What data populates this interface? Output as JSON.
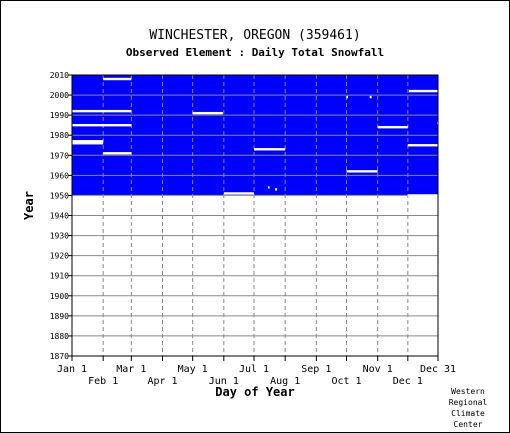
{
  "chart_data": {
    "type": "heatmap",
    "title": "WINCHESTER, OREGON   (359461)",
    "subtitle": "Observed Element : Daily Total Snowfall",
    "xlabel": "Day of Year",
    "ylabel": "Year",
    "xlim": [
      1,
      365
    ],
    "ylim": [
      1870,
      2010
    ],
    "grid": true,
    "data_color": "#0000ff",
    "missing_color": "#ffffff",
    "x_ticks_upper": [
      {
        "label": "Jan 1",
        "day": 1
      },
      {
        "label": "Mar 1",
        "day": 60
      },
      {
        "label": "May 1",
        "day": 121
      },
      {
        "label": "Jul 1",
        "day": 182
      },
      {
        "label": "Sep 1",
        "day": 244
      },
      {
        "label": "Nov 1",
        "day": 305
      },
      {
        "label": "Dec 31",
        "day": 365
      }
    ],
    "x_ticks_lower": [
      {
        "label": "Feb 1",
        "day": 32
      },
      {
        "label": "Apr 1",
        "day": 91
      },
      {
        "label": "Jun 1",
        "day": 152
      },
      {
        "label": "Aug 1",
        "day": 213
      },
      {
        "label": "Oct 1",
        "day": 274
      },
      {
        "label": "Dec 1",
        "day": 335
      }
    ],
    "y_ticks": [
      1870,
      1880,
      1890,
      1900,
      1910,
      1920,
      1930,
      1940,
      1950,
      1960,
      1970,
      1980,
      1990,
      2000,
      2010
    ],
    "data_coverage": {
      "year_start": 1950,
      "year_end": 2010,
      "day_start": 1,
      "day_end": 365
    },
    "missing_segments": [
      {
        "year": 2008,
        "day_start": 32,
        "day_end": 59
      },
      {
        "year": 2002,
        "day_start": 336,
        "day_end": 365
      },
      {
        "year": 1999,
        "day_start": 297,
        "day_end": 298
      },
      {
        "year": 1999,
        "day_start": 274,
        "day_end": 274
      },
      {
        "year": 1992,
        "day_start": 1,
        "day_end": 59
      },
      {
        "year": 1991,
        "day_start": 121,
        "day_end": 150
      },
      {
        "year": 1986,
        "day_start": 364,
        "day_end": 365
      },
      {
        "year": 1985,
        "day_start": 1,
        "day_end": 59
      },
      {
        "year": 1984,
        "day_start": 305,
        "day_end": 334
      },
      {
        "year": 1977,
        "day_start": 1,
        "day_end": 31
      },
      {
        "year": 1976,
        "day_start": 1,
        "day_end": 31
      },
      {
        "year": 1975,
        "day_start": 335,
        "day_end": 365
      },
      {
        "year": 1973,
        "day_start": 182,
        "day_end": 212
      },
      {
        "year": 1971,
        "day_start": 32,
        "day_end": 59
      },
      {
        "year": 1962,
        "day_start": 274,
        "day_end": 304
      },
      {
        "year": 1954,
        "day_start": 196,
        "day_end": 196
      },
      {
        "year": 1953,
        "day_start": 203,
        "day_end": 204
      },
      {
        "year": 1951,
        "day_start": 152,
        "day_end": 181
      },
      {
        "year": 1950,
        "day_start": 335,
        "day_end": 365
      }
    ]
  },
  "credit_lines": [
    "Western",
    "Regional",
    "Climate",
    "Center"
  ]
}
